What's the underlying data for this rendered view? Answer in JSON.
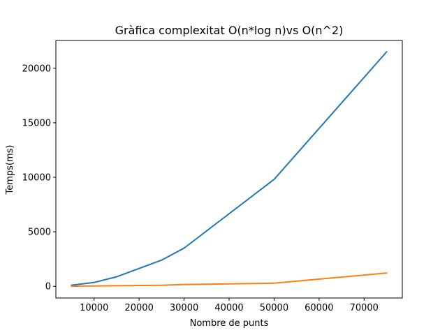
{
  "chart_data": {
    "type": "line",
    "title": "Gràfica complexitat O(n*log n)vs O(n^2)",
    "xlabel": "Nombre de punts",
    "ylabel": "Temps(ms)",
    "xlim": [
      1500,
      78500
    ],
    "ylim": [
      -1075,
      22550
    ],
    "xticks": [
      10000,
      20000,
      30000,
      40000,
      50000,
      60000,
      70000
    ],
    "yticks": [
      0,
      5000,
      10000,
      15000,
      20000
    ],
    "xtick_labels": [
      "10000",
      "20000",
      "30000",
      "40000",
      "50000",
      "60000",
      "70000"
    ],
    "ytick_labels": [
      "0",
      "5000",
      "10000",
      "15000",
      "20000"
    ],
    "grid": false,
    "x": [
      5000,
      10000,
      15000,
      25000,
      30000,
      50000,
      75000
    ],
    "series": [
      {
        "color": "#1f77b4",
        "values": [
          100,
          350,
          870,
          2400,
          3500,
          9800,
          21500
        ]
      },
      {
        "color": "#ff7f0e",
        "values": [
          10,
          30,
          50,
          90,
          170,
          280,
          1220
        ]
      }
    ]
  }
}
